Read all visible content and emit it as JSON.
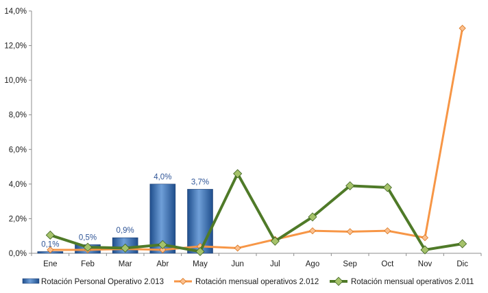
{
  "chart_data": {
    "type": "bar",
    "categories": [
      "Ene",
      "Feb",
      "Mar",
      "Abr",
      "May",
      "Jun",
      "Jul",
      "Ago",
      "Sep",
      "Oct",
      "Nov",
      "Dic"
    ],
    "ylim": [
      0,
      14
    ],
    "yticks": [
      0,
      2,
      4,
      6,
      8,
      10,
      12,
      14
    ],
    "ytick_labels": [
      "0,0%",
      "2,0%",
      "4,0%",
      "6,0%",
      "8,0%",
      "10,0%",
      "12,0%",
      "14,0%"
    ],
    "grid": false,
    "legend_position": "bottom",
    "bars": {
      "name": "Rotación Personal Operativo 2.013",
      "color": "#4f81bd",
      "values": [
        0.1,
        0.5,
        0.9,
        4.0,
        3.7
      ],
      "labels": [
        "0,1%",
        "0,5%",
        "0,9%",
        "4,0%",
        "3,7%"
      ]
    },
    "series": [
      {
        "name": "Rotación mensual operativos 2.012",
        "color": "#f79646",
        "values": [
          0.2,
          0.2,
          0.25,
          0.2,
          0.4,
          0.3,
          0.8,
          1.3,
          1.25,
          1.3,
          0.9,
          13.0
        ]
      },
      {
        "name": "Rotación mensual operativos 2.011",
        "color": "#4f7a28",
        "values": [
          1.05,
          0.35,
          0.3,
          0.5,
          0.1,
          4.6,
          0.7,
          2.1,
          3.9,
          3.8,
          0.2,
          0.55
        ]
      }
    ]
  }
}
